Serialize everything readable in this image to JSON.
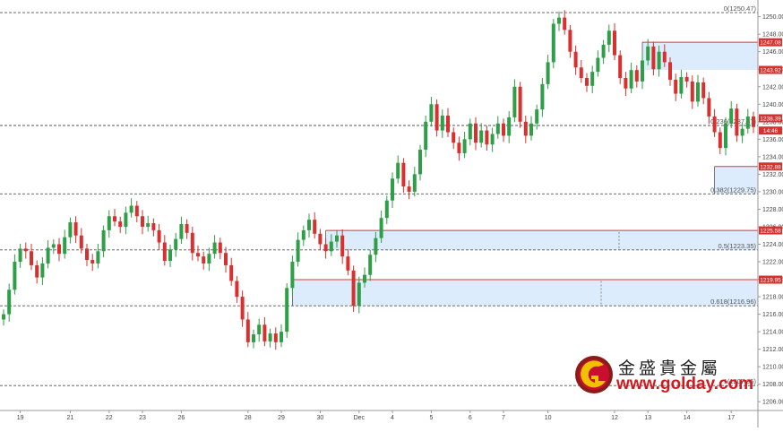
{
  "chart_data": {
    "type": "candlestick",
    "title": "",
    "xlabel": "",
    "ylabel": "",
    "ylim": [
      1205,
      1251.5
    ],
    "grid": false,
    "x_ticks": [
      {
        "label": "19",
        "i": 3
      },
      {
        "label": "21",
        "i": 12
      },
      {
        "label": "22",
        "i": 19
      },
      {
        "label": "23",
        "i": 25
      },
      {
        "label": "26",
        "i": 32
      },
      {
        "label": "28",
        "i": 44
      },
      {
        "label": "29",
        "i": 50
      },
      {
        "label": "30",
        "i": 57
      },
      {
        "label": "Dec",
        "i": 64
      },
      {
        "label": "4",
        "i": 70
      },
      {
        "label": "5",
        "i": 77
      },
      {
        "label": "6",
        "i": 84
      },
      {
        "label": "7",
        "i": 90
      },
      {
        "label": "10",
        "i": 98
      },
      {
        "label": "12",
        "i": 110
      },
      {
        "label": "13",
        "i": 116
      },
      {
        "label": "14",
        "i": 123
      },
      {
        "label": "17",
        "i": 131
      }
    ],
    "y_ticks": [
      1206,
      1208,
      1210,
      1212,
      1214,
      1216,
      1218,
      1220,
      1222,
      1224,
      1226,
      1228,
      1230,
      1232,
      1234,
      1236,
      1238,
      1240,
      1242,
      1244,
      1246,
      1248,
      1250
    ],
    "price_tags": [
      {
        "value": 1247.08,
        "label": "1247.08"
      },
      {
        "value": 1243.92,
        "label": "1243.92"
      },
      {
        "value": 1238.39,
        "label": "1238.39"
      },
      {
        "value": 1232.88,
        "label": "1232.88"
      },
      {
        "value": 1225.58,
        "label": "1225.58"
      },
      {
        "value": 1219.95,
        "label": "1219.95"
      }
    ],
    "current_price": {
      "value": 1237.4,
      "label": "14:46"
    },
    "fib_levels": [
      {
        "value": 1250.47,
        "label": "0(1250.47)"
      },
      {
        "value": 1237.57,
        "label": "0.236(1237.57)"
      },
      {
        "value": 1229.75,
        "label": "0.382(1229.75)"
      },
      {
        "value": 1223.35,
        "label": "0.5(1223.35)"
      },
      {
        "value": 1216.96,
        "label": "0.618(1216.96)"
      },
      {
        "value": 1207.85,
        "label": "1(1207.85)"
      }
    ],
    "zones": [
      {
        "x0": 115,
        "x1": 138,
        "top": 1247.08,
        "bottom": 1243.92
      },
      {
        "x0": 128,
        "x1": 138,
        "top": 1232.88,
        "bottom": 1229.75
      },
      {
        "x0": 58,
        "x1": 138,
        "top": 1225.58,
        "bottom": 1223.35
      },
      {
        "x0": 52,
        "x1": 138,
        "top": 1219.95,
        "bottom": 1216.96
      }
    ],
    "series": [
      {
        "values": [
          1216.0,
          1218.8,
          1222.0,
          1223.5,
          1223.2,
          1221.6,
          1220.2,
          1221.8,
          1223.6,
          1224.0,
          1222.9,
          1224.8,
          1226.5,
          1225.0,
          1223.5,
          1222.2,
          1221.8,
          1223.2,
          1225.6,
          1227.2,
          1226.6,
          1226.0,
          1227.6,
          1228.4,
          1227.2,
          1226.0,
          1226.4,
          1225.6,
          1224.2,
          1222.1,
          1223.4,
          1224.6,
          1226.3,
          1225.3,
          1223.0,
          1222.6,
          1221.8,
          1222.9,
          1224.2,
          1223.0,
          1221.6,
          1219.8,
          1218.0,
          1215.4,
          1212.8,
          1213.7,
          1214.8,
          1212.9,
          1213.8,
          1212.8,
          1214.0,
          1219.0,
          1222.0,
          1224.5,
          1225.6,
          1226.8,
          1225.2,
          1224.0,
          1223.2,
          1224.3,
          1225.0,
          1222.6,
          1221.0,
          1216.96,
          1219.6,
          1220.5,
          1222.8,
          1224.7,
          1227.0,
          1229.0,
          1231.5,
          1233.3,
          1230.6,
          1230.0,
          1232.0,
          1234.8,
          1238.0,
          1240.0,
          1237.0,
          1238.7,
          1236.8,
          1235.6,
          1234.4,
          1236.0,
          1237.8,
          1235.6,
          1237.0,
          1235.4,
          1236.6,
          1237.8,
          1236.4,
          1238.5,
          1242.0,
          1238.0,
          1236.4,
          1237.8,
          1239.4,
          1242.3,
          1244.8,
          1249.2,
          1249.9,
          1248.5,
          1246.0,
          1244.2,
          1243.0,
          1242.1,
          1243.7,
          1245.3,
          1246.8,
          1248.4,
          1245.6,
          1243.0,
          1241.8,
          1243.9,
          1242.6,
          1245.0,
          1246.6,
          1244.0,
          1246.0,
          1244.8,
          1242.8,
          1241.2,
          1243.1,
          1242.6,
          1240.3,
          1242.5,
          1240.7,
          1238.6,
          1236.8,
          1235.0,
          1237.8,
          1239.5,
          1236.4,
          1237.2,
          1238.6,
          1237.4
        ]
      }
    ]
  }
}
